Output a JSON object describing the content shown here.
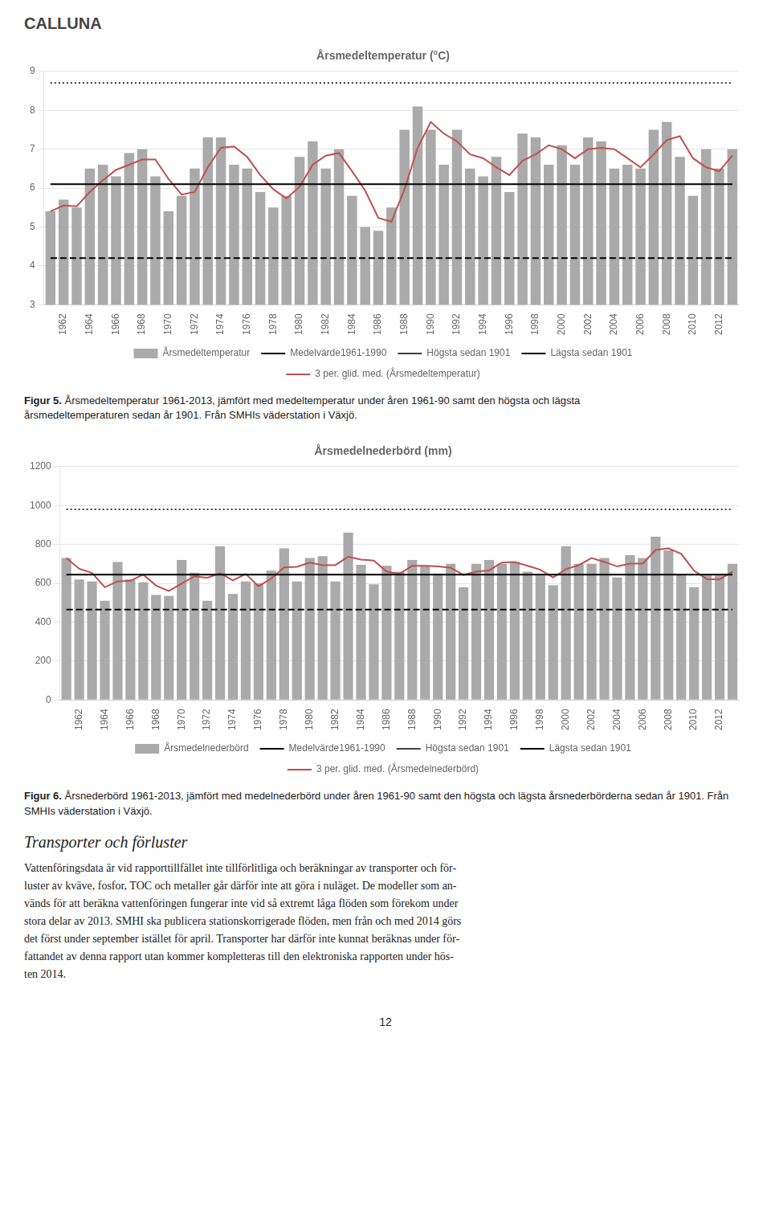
{
  "header": "CALLUNA",
  "chart_data": [
    {
      "type": "bar",
      "title": "Årsmedeltemperatur (°C)",
      "categories": [
        null,
        "1962",
        null,
        "1964",
        null,
        "1966",
        null,
        "1968",
        null,
        "1970",
        null,
        "1972",
        null,
        "1974",
        null,
        "1976",
        null,
        "1978",
        null,
        "1980",
        null,
        "1982",
        null,
        "1984",
        null,
        "1986",
        null,
        "1988",
        null,
        "1990",
        null,
        "1992",
        null,
        "1994",
        null,
        "1996",
        null,
        "1998",
        null,
        "2000",
        null,
        "2002",
        null,
        "2004",
        null,
        "2006",
        null,
        "2008",
        null,
        "2010",
        null,
        "2012",
        null
      ],
      "series": [
        {
          "name": "Årsmedeltemperatur",
          "type": "bar",
          "color": "#aaaaaa",
          "values": [
            5.4,
            5.7,
            5.5,
            6.5,
            6.6,
            6.3,
            6.9,
            7.0,
            6.3,
            5.4,
            5.8,
            6.5,
            7.3,
            7.3,
            6.6,
            6.5,
            5.9,
            5.5,
            5.8,
            6.8,
            7.2,
            6.5,
            7.0,
            5.8,
            5.0,
            4.9,
            5.5,
            7.5,
            8.1,
            7.5,
            6.6,
            7.5,
            6.5,
            6.3,
            6.8,
            5.9,
            7.4,
            7.3,
            6.6,
            7.1,
            6.6,
            7.3,
            7.2,
            6.5,
            6.6,
            6.5,
            7.5,
            7.7,
            6.8,
            5.8,
            7.0,
            6.5,
            7.0
          ]
        },
        {
          "name": "Medelvärde1961-1990",
          "type": "line",
          "color": "#000000",
          "line_style": "solid",
          "values": [
            6.1,
            6.1,
            6.1,
            6.1,
            6.1,
            6.1,
            6.1,
            6.1,
            6.1,
            6.1,
            6.1,
            6.1,
            6.1,
            6.1,
            6.1,
            6.1,
            6.1,
            6.1,
            6.1,
            6.1,
            6.1,
            6.1,
            6.1,
            6.1,
            6.1,
            6.1,
            6.1,
            6.1,
            6.1,
            6.1,
            6.1,
            6.1,
            6.1,
            6.1,
            6.1,
            6.1,
            6.1,
            6.1,
            6.1,
            6.1,
            6.1,
            6.1,
            6.1,
            6.1,
            6.1,
            6.1,
            6.1,
            6.1,
            6.1,
            6.1,
            6.1,
            6.1,
            6.1
          ]
        },
        {
          "name": "Högsta sedan 1901",
          "type": "line",
          "color": "#000000",
          "line_style": "dotted",
          "values": [
            8.7,
            8.7,
            8.7,
            8.7,
            8.7,
            8.7,
            8.7,
            8.7,
            8.7,
            8.7,
            8.7,
            8.7,
            8.7,
            8.7,
            8.7,
            8.7,
            8.7,
            8.7,
            8.7,
            8.7,
            8.7,
            8.7,
            8.7,
            8.7,
            8.7,
            8.7,
            8.7,
            8.7,
            8.7,
            8.7,
            8.7,
            8.7,
            8.7,
            8.7,
            8.7,
            8.7,
            8.7,
            8.7,
            8.7,
            8.7,
            8.7,
            8.7,
            8.7,
            8.7,
            8.7,
            8.7,
            8.7,
            8.7,
            8.7,
            8.7,
            8.7,
            8.7,
            8.7
          ]
        },
        {
          "name": "Lägsta sedan 1901",
          "type": "line",
          "color": "#000000",
          "line_style": "dashed",
          "values": [
            4.2,
            4.2,
            4.2,
            4.2,
            4.2,
            4.2,
            4.2,
            4.2,
            4.2,
            4.2,
            4.2,
            4.2,
            4.2,
            4.2,
            4.2,
            4.2,
            4.2,
            4.2,
            4.2,
            4.2,
            4.2,
            4.2,
            4.2,
            4.2,
            4.2,
            4.2,
            4.2,
            4.2,
            4.2,
            4.2,
            4.2,
            4.2,
            4.2,
            4.2,
            4.2,
            4.2,
            4.2,
            4.2,
            4.2,
            4.2,
            4.2,
            4.2,
            4.2,
            4.2,
            4.2,
            4.2,
            4.2,
            4.2,
            4.2,
            4.2,
            4.2,
            4.2,
            4.2
          ]
        },
        {
          "name": "3 per. glid. med. (Årsmedeltemperatur)",
          "type": "line",
          "color": "#c0504d",
          "line_style": "solid",
          "values": [
            5.4,
            5.55,
            5.5333,
            5.9,
            6.2,
            6.4667,
            6.6,
            6.7333,
            6.7333,
            6.2333,
            5.8333,
            5.9,
            6.5333,
            7.0333,
            7.0667,
            6.8,
            6.3333,
            5.9667,
            5.7333,
            6.0333,
            6.6,
            6.8333,
            6.9,
            6.4333,
            5.9333,
            5.2333,
            5.1333,
            5.9667,
            7.0333,
            7.7,
            7.4,
            7.2,
            6.8667,
            6.7667,
            6.5333,
            6.3333,
            6.7,
            6.8667,
            7.1,
            7.0,
            6.7667,
            7.0,
            7.0333,
            7.0,
            6.7667,
            6.5333,
            6.8667,
            7.2333,
            7.3333,
            6.7667,
            6.5333,
            6.4333,
            6.8333
          ]
        }
      ],
      "ylim": [
        3,
        9
      ],
      "yticks": [
        3,
        4,
        5,
        6,
        7,
        8,
        9
      ],
      "grid": true,
      "legend": "bottom",
      "caption": {
        "label": "Figur 5.",
        "text": "Årsmedeltemperatur 1961-2013, jämfört med medeltemperatur under åren 1961-90 samt den högsta och lägsta\nårsmedeltemperaturen sedan år 1901. Från SMHIs väderstation i Växjö."
      }
    },
    {
      "type": "bar",
      "title": "Årsmedelnederbörd (mm)",
      "categories": [
        null,
        "1962",
        null,
        "1964",
        null,
        "1966",
        null,
        "1968",
        null,
        "1970",
        null,
        "1972",
        null,
        "1974",
        null,
        "1976",
        null,
        "1978",
        null,
        "1980",
        null,
        "1982",
        null,
        "1984",
        null,
        "1986",
        null,
        "1988",
        null,
        "1990",
        null,
        "1992",
        null,
        "1994",
        null,
        "1996",
        null,
        "1998",
        null,
        "2000",
        null,
        "2002",
        null,
        "2004",
        null,
        "2006",
        null,
        "2008",
        null,
        "2010",
        null,
        "2012",
        null
      ],
      "series": [
        {
          "name": "Årsmedelnederbörd",
          "type": "bar",
          "color": "#aaaaaa",
          "values": [
            730,
            620,
            610,
            510,
            710,
            620,
            605,
            540,
            535,
            720,
            655,
            510,
            790,
            545,
            610,
            600,
            665,
            780,
            610,
            730,
            740,
            610,
            860,
            695,
            595,
            690,
            660,
            720,
            690,
            650,
            700,
            580,
            700,
            720,
            700,
            710,
            660,
            640,
            590,
            790,
            700,
            700,
            730,
            630,
            745,
            730,
            840,
            770,
            645,
            580,
            640,
            640,
            700
          ]
        },
        {
          "name": "Medelvärde1961-1990",
          "type": "line",
          "color": "#000000",
          "line_style": "solid",
          "values": [
            645,
            645,
            645,
            645,
            645,
            645,
            645,
            645,
            645,
            645,
            645,
            645,
            645,
            645,
            645,
            645,
            645,
            645,
            645,
            645,
            645,
            645,
            645,
            645,
            645,
            645,
            645,
            645,
            645,
            645,
            645,
            645,
            645,
            645,
            645,
            645,
            645,
            645,
            645,
            645,
            645,
            645,
            645,
            645,
            645,
            645,
            645,
            645,
            645,
            645,
            645,
            645,
            645
          ]
        },
        {
          "name": "Högsta sedan 1901",
          "type": "line",
          "color": "#000000",
          "line_style": "dotted",
          "values": [
            980,
            980,
            980,
            980,
            980,
            980,
            980,
            980,
            980,
            980,
            980,
            980,
            980,
            980,
            980,
            980,
            980,
            980,
            980,
            980,
            980,
            980,
            980,
            980,
            980,
            980,
            980,
            980,
            980,
            980,
            980,
            980,
            980,
            980,
            980,
            980,
            980,
            980,
            980,
            980,
            980,
            980,
            980,
            980,
            980,
            980,
            980,
            980,
            980,
            980,
            980,
            980,
            980
          ]
        },
        {
          "name": "Lägsta sedan 1901",
          "type": "line",
          "color": "#000000",
          "line_style": "dashed",
          "values": [
            465,
            465,
            465,
            465,
            465,
            465,
            465,
            465,
            465,
            465,
            465,
            465,
            465,
            465,
            465,
            465,
            465,
            465,
            465,
            465,
            465,
            465,
            465,
            465,
            465,
            465,
            465,
            465,
            465,
            465,
            465,
            465,
            465,
            465,
            465,
            465,
            465,
            465,
            465,
            465,
            465,
            465,
            465,
            465,
            465,
            465,
            465,
            465,
            465,
            465,
            465,
            465,
            465
          ]
        },
        {
          "name": "3 per. glid. med. (Årsmedelnederbörd)",
          "type": "line",
          "color": "#c0504d",
          "line_style": "solid",
          "values": [
            730,
            675,
            653.3333,
            580,
            610,
            613.3333,
            645,
            588.3333,
            560,
            598.3333,
            636.6667,
            628.3333,
            651.6667,
            615,
            648.3333,
            585,
            625,
            681.6667,
            685,
            706.6667,
            693.3333,
            693.3333,
            736.6667,
            721.6667,
            716.6667,
            660,
            648.3333,
            690,
            690,
            686.6667,
            680,
            643.3333,
            660,
            666.6667,
            706.6667,
            710,
            690,
            670,
            630,
            673.3333,
            693.3333,
            730,
            710,
            686.6667,
            701.6667,
            701.6667,
            771.6667,
            780,
            751.6667,
            665,
            621.6667,
            620,
            660
          ]
        }
      ],
      "ylim": [
        0,
        1200
      ],
      "yticks": [
        0,
        200,
        400,
        600,
        800,
        1000,
        1200
      ],
      "grid": true,
      "legend": "bottom",
      "caption": {
        "label": "Figur 6.",
        "text": "Årsnederbörd 1961-2013, jämfört med medelnederbörd under åren 1961-90 samt den högsta och lägsta årsnederbörderna sedan år 1901. Från SMHIs väderstation i Växjö."
      }
    }
  ],
  "section_title": "Transporter och förluster",
  "body_lines": [
    "Vattenföringsdata är vid rapporttillfället inte tillförlitliga och beräkningar av transporter och för-",
    "luster av kväve, fosfor, TOC och metaller går därför inte att göra i nuläget. De modeller som an-",
    "vänds för att beräkna vattenföringen fungerar inte vid så extremt låga flöden som förekom under",
    "stora delar av 2013. SMHI ska publicera stationskorrigerade flöden, men från och med 2014 görs",
    "det först under september istället för april. Transporter har därför inte kunnat beräknas under för-",
    "fattandet av denna rapport utan kommer kompletteras till den elektroniska rapporten under hös-",
    "ten 2014."
  ],
  "page_number": "12"
}
